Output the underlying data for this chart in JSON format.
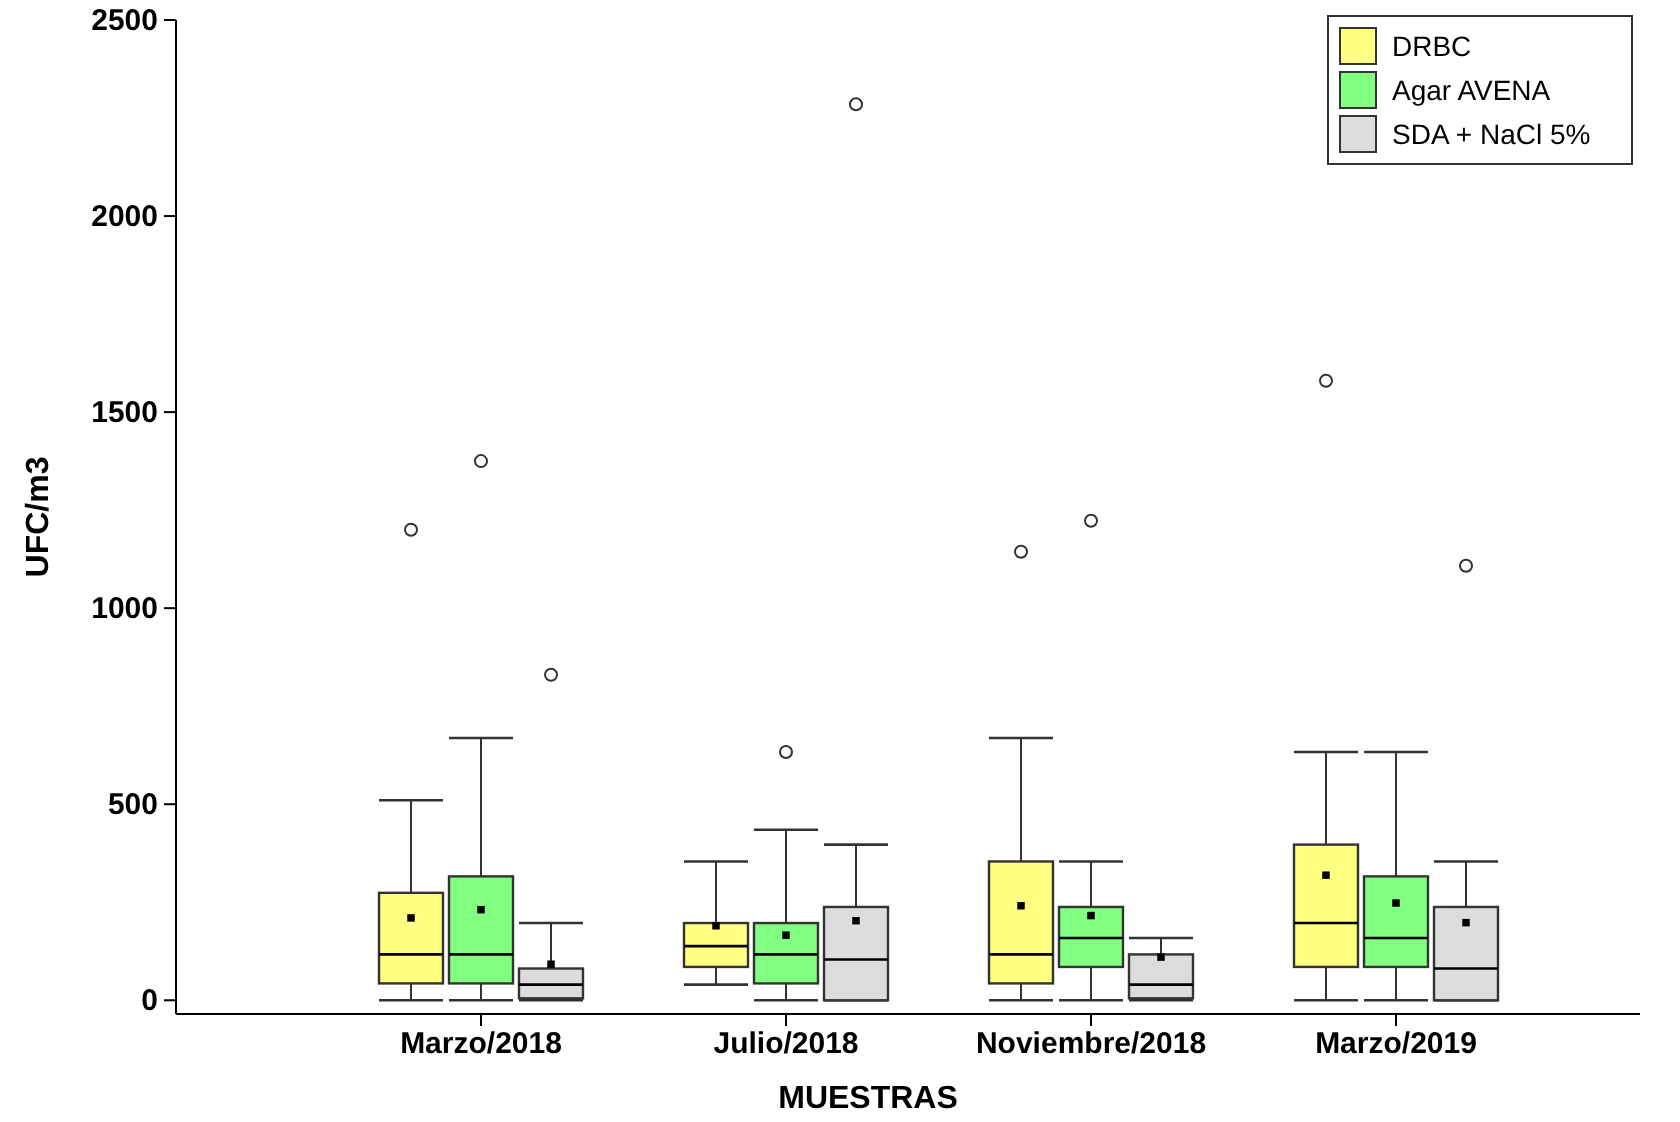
{
  "chart_data": {
    "type": "box",
    "xlabel": "MUESTRAS",
    "ylabel": "UFC/m3",
    "categories": [
      "Marzo/2018",
      "Julio/2018",
      "Noviembre/2018",
      "Marzo/2019"
    ],
    "ylim": [
      -35,
      2500
    ],
    "yticks": [
      0,
      500,
      1000,
      1500,
      2000,
      2500
    ],
    "grid": false,
    "legend": "top right",
    "marker": "square",
    "series": [
      {
        "name": "DRBC",
        "color": "#ffff80",
        "boxes": [
          {
            "low": 0,
            "q1": 43,
            "median": 117,
            "q3": 274,
            "high": 510,
            "mean": 210,
            "outliers": [
              1200
            ]
          },
          {
            "low": 40,
            "q1": 85,
            "median": 138,
            "q3": 197,
            "high": 354,
            "mean": 190
          },
          {
            "low": 0,
            "q1": 43,
            "median": 117,
            "q3": 354,
            "high": 669,
            "mean": 241,
            "outliers": [
              1144
            ]
          },
          {
            "low": 0,
            "q1": 85,
            "median": 197,
            "q3": 397,
            "high": 633,
            "mean": 319,
            "outliers": [
              1580
            ]
          }
        ]
      },
      {
        "name": "Agar AVENA",
        "color": "#80ff80",
        "boxes": [
          {
            "low": 0,
            "q1": 43,
            "median": 117,
            "q3": 316,
            "high": 669,
            "mean": 231,
            "outliers": [
              1375
            ]
          },
          {
            "low": 0,
            "q1": 43,
            "median": 117,
            "q3": 197,
            "high": 435,
            "mean": 166,
            "outliers": [
              633
            ]
          },
          {
            "low": 0,
            "q1": 85,
            "median": 159,
            "q3": 238,
            "high": 354,
            "mean": 216,
            "outliers": [
              1223
            ]
          },
          {
            "low": 0,
            "q1": 85,
            "median": 159,
            "q3": 316,
            "high": 633,
            "mean": 248
          }
        ]
      },
      {
        "name": "SDA + NaCl 5%",
        "color": "#dcdcdc",
        "boxes": [
          {
            "low": 0,
            "q1": 5,
            "median": 40,
            "q3": 81,
            "high": 197,
            "mean": 92,
            "outliers": [
              830
            ]
          },
          {
            "low": 0,
            "q1": 0,
            "median": 104,
            "q3": 238,
            "high": 397,
            "mean": 203,
            "outliers": [
              2285
            ]
          },
          {
            "low": 0,
            "q1": 5,
            "median": 40,
            "q3": 117,
            "high": 159,
            "mean": 110
          },
          {
            "low": 0,
            "q1": 0,
            "median": 81,
            "q3": 238,
            "high": 354,
            "mean": 198,
            "outliers": [
              1108
            ]
          }
        ]
      }
    ]
  }
}
